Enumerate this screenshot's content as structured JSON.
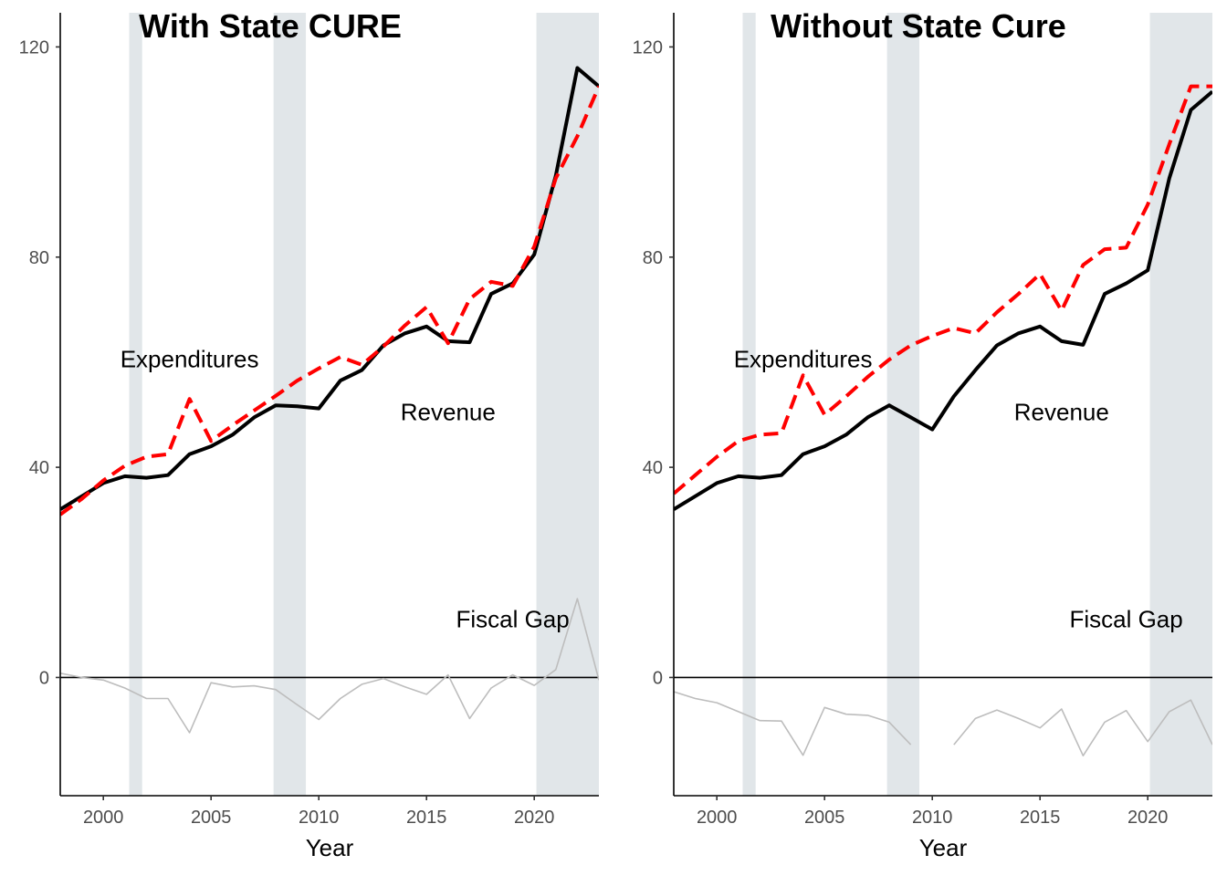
{
  "chart_data": [
    {
      "type": "line",
      "title": "With State CURE",
      "xlabel": "Year",
      "ylabel": "",
      "xlim": [
        1998,
        2023
      ],
      "ylim": [
        -22.5,
        126.5
      ],
      "x_ticks": [
        2000,
        2005,
        2010,
        2015,
        2020
      ],
      "y_ticks": [
        0,
        40,
        80,
        120
      ],
      "recessions": [
        [
          2001.2,
          2001.8
        ],
        [
          2007.9,
          2009.4
        ],
        [
          2020.1,
          2023
        ]
      ],
      "annotations": [
        {
          "text": "Expenditures",
          "x": 2004,
          "y": 59
        },
        {
          "text": "Revenue",
          "x": 2016,
          "y": 49
        },
        {
          "text": "Fiscal Gap",
          "x": 2019,
          "y": 9.5
        }
      ],
      "series": [
        {
          "role": "revenue",
          "style": "solid",
          "color": "#000000",
          "x": [
            1998,
            1999,
            2000,
            2001,
            2002,
            2003,
            2004,
            2005,
            2006,
            2007,
            2008,
            2009,
            2010,
            2011,
            2012,
            2013,
            2014,
            2015,
            2016,
            2017,
            2018,
            2019,
            2020,
            2021,
            2022,
            2023
          ],
          "values": [
            32,
            34.5,
            37,
            38.3,
            38,
            38.5,
            42.5,
            44,
            46.2,
            49.5,
            51.8,
            51.6,
            51.2,
            56.5,
            58.5,
            63.2,
            65.5,
            66.8,
            64,
            63.8,
            73,
            75,
            80.5,
            95.5,
            116,
            112.5
          ]
        },
        {
          "role": "expenditures",
          "style": "dashed",
          "color": "#ff0000",
          "x": [
            1998,
            1999,
            2000,
            2001,
            2002,
            2003,
            2004,
            2005,
            2006,
            2007,
            2008,
            2009,
            2010,
            2011,
            2012,
            2013,
            2014,
            2015,
            2016,
            2017,
            2018,
            2019,
            2020,
            2021,
            2022,
            2023
          ],
          "values": [
            31,
            34,
            37.5,
            40.3,
            42,
            42.5,
            53,
            45,
            48,
            50.8,
            53.6,
            56.5,
            58.8,
            61,
            59.5,
            63,
            67,
            70.5,
            63.6,
            72,
            75.3,
            74.5,
            82,
            95,
            103,
            112.5
          ]
        },
        {
          "role": "fiscal_gap",
          "style": "thin",
          "color": "#bdbdbd",
          "x": [
            1998,
            1999,
            2000,
            2001,
            2002,
            2003,
            2004,
            2005,
            2006,
            2007,
            2008,
            2009,
            2010,
            2011,
            2012,
            2013,
            2014,
            2015,
            2016,
            2017,
            2018,
            2019,
            2020,
            2021,
            2022,
            2023
          ],
          "values": [
            0.8,
            0,
            -0.5,
            -2,
            -4,
            -4,
            -10.5,
            -1,
            -1.8,
            -1.6,
            -2.3,
            -5.2,
            -8,
            -4,
            -1.3,
            -0.2,
            -1.8,
            -3.2,
            0.5,
            -7.8,
            -2,
            0.5,
            -1.5,
            1.5,
            15,
            -0.5
          ]
        }
      ]
    },
    {
      "type": "line",
      "title": "Without State Cure",
      "xlabel": "Year",
      "ylabel": "",
      "xlim": [
        1998,
        2023
      ],
      "ylim": [
        -22.5,
        126.5
      ],
      "x_ticks": [
        2000,
        2005,
        2010,
        2015,
        2020
      ],
      "y_ticks": [
        0,
        40,
        80,
        120
      ],
      "recessions": [
        [
          2001.2,
          2001.8
        ],
        [
          2007.9,
          2009.4
        ],
        [
          2020.1,
          2023
        ]
      ],
      "annotations": [
        {
          "text": "Expenditures",
          "x": 2004,
          "y": 59
        },
        {
          "text": "Revenue",
          "x": 2016,
          "y": 49
        },
        {
          "text": "Fiscal Gap",
          "x": 2019,
          "y": 9.5
        }
      ],
      "series": [
        {
          "role": "revenue",
          "style": "solid",
          "color": "#000000",
          "x": [
            1998,
            1999,
            2000,
            2001,
            2002,
            2003,
            2004,
            2005,
            2006,
            2007,
            2008,
            2009,
            2010,
            2011,
            2012,
            2013,
            2014,
            2015,
            2016,
            2017,
            2018,
            2019,
            2020,
            2021,
            2022,
            2023
          ],
          "values": [
            32,
            34.5,
            37,
            38.3,
            38,
            38.5,
            42.5,
            44,
            46.2,
            49.5,
            51.8,
            49.5,
            47.2,
            53.5,
            58.5,
            63.2,
            65.5,
            66.8,
            64,
            63.3,
            73,
            75,
            77.5,
            95,
            108,
            111.5
          ]
        },
        {
          "role": "expenditures",
          "style": "dashed",
          "color": "#ff0000",
          "x": [
            1998,
            1999,
            2000,
            2001,
            2002,
            2003,
            2004,
            2005,
            2006,
            2007,
            2008,
            2009,
            2010,
            2011,
            2012,
            2013,
            2014,
            2015,
            2016,
            2017,
            2018,
            2019,
            2020,
            2021,
            2022,
            2023
          ],
          "values": [
            35,
            38.5,
            42,
            45,
            46.2,
            46.5,
            57.5,
            50,
            53.5,
            57.2,
            60.5,
            63.2,
            65,
            66.5,
            65.5,
            69.5,
            73,
            76.8,
            69.8,
            78.5,
            81.5,
            81.8,
            90,
            101.5,
            112.5,
            112.5
          ]
        },
        {
          "role": "fiscal_gap",
          "style": "thin",
          "color": "#bdbdbd",
          "x": [
            1998,
            1999,
            2000,
            2001,
            2002,
            2003,
            2004,
            2005,
            2006,
            2007,
            2008,
            2009,
            2010,
            2011,
            2012,
            2013,
            2014,
            2015,
            2016,
            2017,
            2018,
            2019,
            2020,
            2021,
            2022,
            2023
          ],
          "values": [
            -2.7,
            -4,
            -4.8,
            -6.5,
            -8.2,
            -8.3,
            -14.8,
            -5.7,
            -7,
            -7.2,
            -8.5,
            -12.8,
            null,
            -12.8,
            -7.8,
            -6.2,
            -7.8,
            -9.6,
            -6,
            -14.9,
            -8.5,
            -6.3,
            -12.2,
            -6.5,
            -4.3,
            -12.8
          ]
        }
      ]
    }
  ]
}
